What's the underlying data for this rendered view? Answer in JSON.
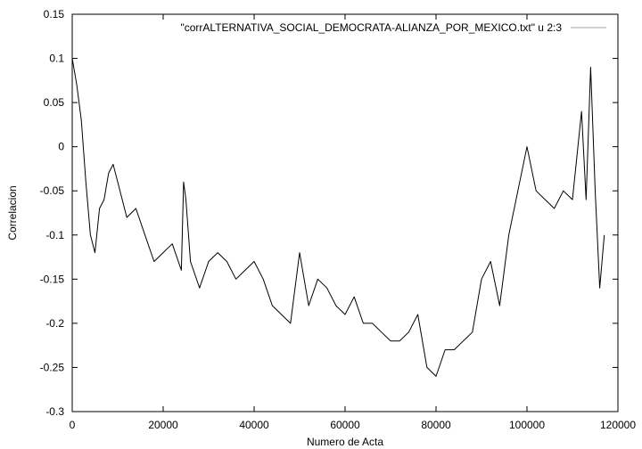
{
  "chart_data": {
    "type": "line",
    "title": "",
    "xlabel": "Numero de Acta",
    "ylabel": "Correlacion",
    "xlim": [
      0,
      120000
    ],
    "ylim": [
      -0.3,
      0.15
    ],
    "x_ticks": [
      0,
      20000,
      40000,
      60000,
      80000,
      100000,
      120000
    ],
    "y_ticks": [
      0.15,
      0.1,
      0.05,
      0,
      -0.05,
      -0.1,
      -0.15,
      -0.2,
      -0.25,
      -0.3
    ],
    "x_tick_labels": [
      "0",
      "20000",
      "40000",
      "60000",
      "80000",
      "100000",
      "120000"
    ],
    "y_tick_labels": [
      "0.15",
      "0.1",
      "0.05",
      "0",
      "-0.05",
      "-0.1",
      "-0.15",
      "-0.2",
      "-0.25",
      "-0.3"
    ],
    "grid": false,
    "legend_position": "top-right",
    "series": [
      {
        "name": "\"corrALTERNATIVA_SOCIAL_DEMOCRATA-ALIANZA_POR_MEXICO.txt\" u 2:3",
        "color": "#000000",
        "legend_color": "#a0a0a0",
        "x": [
          0,
          1000,
          2000,
          3000,
          4000,
          5000,
          6000,
          7000,
          8000,
          9000,
          10000,
          12000,
          14000,
          16000,
          18000,
          20000,
          22000,
          24000,
          24500,
          25000,
          26000,
          28000,
          30000,
          32000,
          34000,
          36000,
          38000,
          40000,
          42000,
          44000,
          46000,
          48000,
          50000,
          52000,
          54000,
          56000,
          58000,
          60000,
          62000,
          64000,
          66000,
          68000,
          70000,
          72000,
          74000,
          76000,
          78000,
          80000,
          82000,
          84000,
          86000,
          88000,
          90000,
          92000,
          94000,
          96000,
          98000,
          100000,
          102000,
          104000,
          106000,
          108000,
          110000,
          112000,
          113000,
          114000,
          115000,
          116000,
          117000
        ],
        "y": [
          0.1,
          0.07,
          0.03,
          -0.04,
          -0.1,
          -0.12,
          -0.07,
          -0.06,
          -0.03,
          -0.02,
          -0.04,
          -0.08,
          -0.07,
          -0.1,
          -0.13,
          -0.12,
          -0.11,
          -0.14,
          -0.04,
          -0.06,
          -0.13,
          -0.16,
          -0.13,
          -0.12,
          -0.13,
          -0.15,
          -0.14,
          -0.13,
          -0.15,
          -0.18,
          -0.19,
          -0.2,
          -0.12,
          -0.18,
          -0.15,
          -0.16,
          -0.18,
          -0.19,
          -0.17,
          -0.2,
          -0.2,
          -0.21,
          -0.22,
          -0.22,
          -0.21,
          -0.19,
          -0.25,
          -0.26,
          -0.23,
          -0.23,
          -0.22,
          -0.21,
          -0.15,
          -0.13,
          -0.18,
          -0.1,
          -0.05,
          0.0,
          -0.05,
          -0.06,
          -0.07,
          -0.05,
          -0.06,
          0.04,
          -0.06,
          0.09,
          -0.05,
          -0.16,
          -0.1
        ]
      }
    ]
  }
}
